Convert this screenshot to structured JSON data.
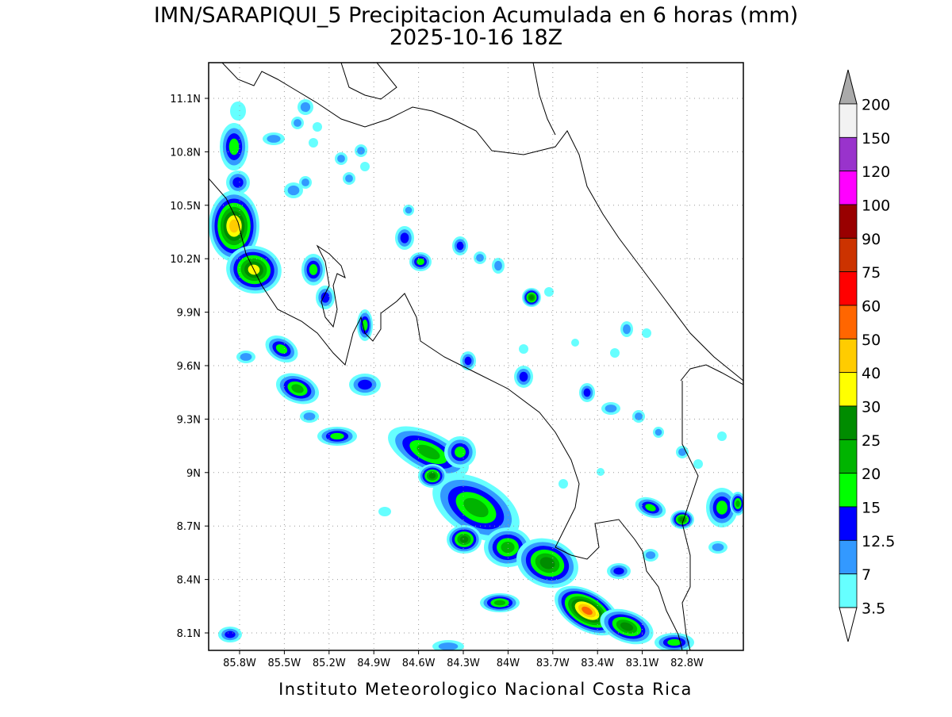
{
  "header": {
    "title": "IMN/SARAPIQUI_5 Precipitacion Acumulada en 6 horas (mm)",
    "subtitle": "2025-10-16 18Z"
  },
  "map": {
    "lat_ticks": [
      "11.1N",
      "10.8N",
      "10.5N",
      "10.2N",
      "9.9N",
      "9.6N",
      "9.3N",
      "9N",
      "8.7N",
      "8.4N",
      "8.1N"
    ],
    "lon_ticks": [
      "85.8W",
      "85.5W",
      "85.2W",
      "84.9W",
      "84.6W",
      "84.3W",
      "84W",
      "83.7W",
      "83.4W",
      "83.1W",
      "82.8W"
    ]
  },
  "colorbar": {
    "labels": [
      "200",
      "150",
      "120",
      "100",
      "90",
      "75",
      "60",
      "50",
      "40",
      "30",
      "25",
      "20",
      "15",
      "12.5",
      "7",
      "3.5"
    ],
    "colors": [
      "#f2f2f2",
      "#9933cc",
      "#ff00ff",
      "#990000",
      "#cc3300",
      "#ff0000",
      "#ff6600",
      "#ffcc00",
      "#ffff00",
      "#008c00",
      "#00b400",
      "#00ff00",
      "#0000ff",
      "#3399ff",
      "#66ffff"
    ],
    "over_color": "#aaaaaa",
    "under_color": "#ffffff"
  },
  "footer": "Instituto Meteorologico Nacional Costa Rica"
}
